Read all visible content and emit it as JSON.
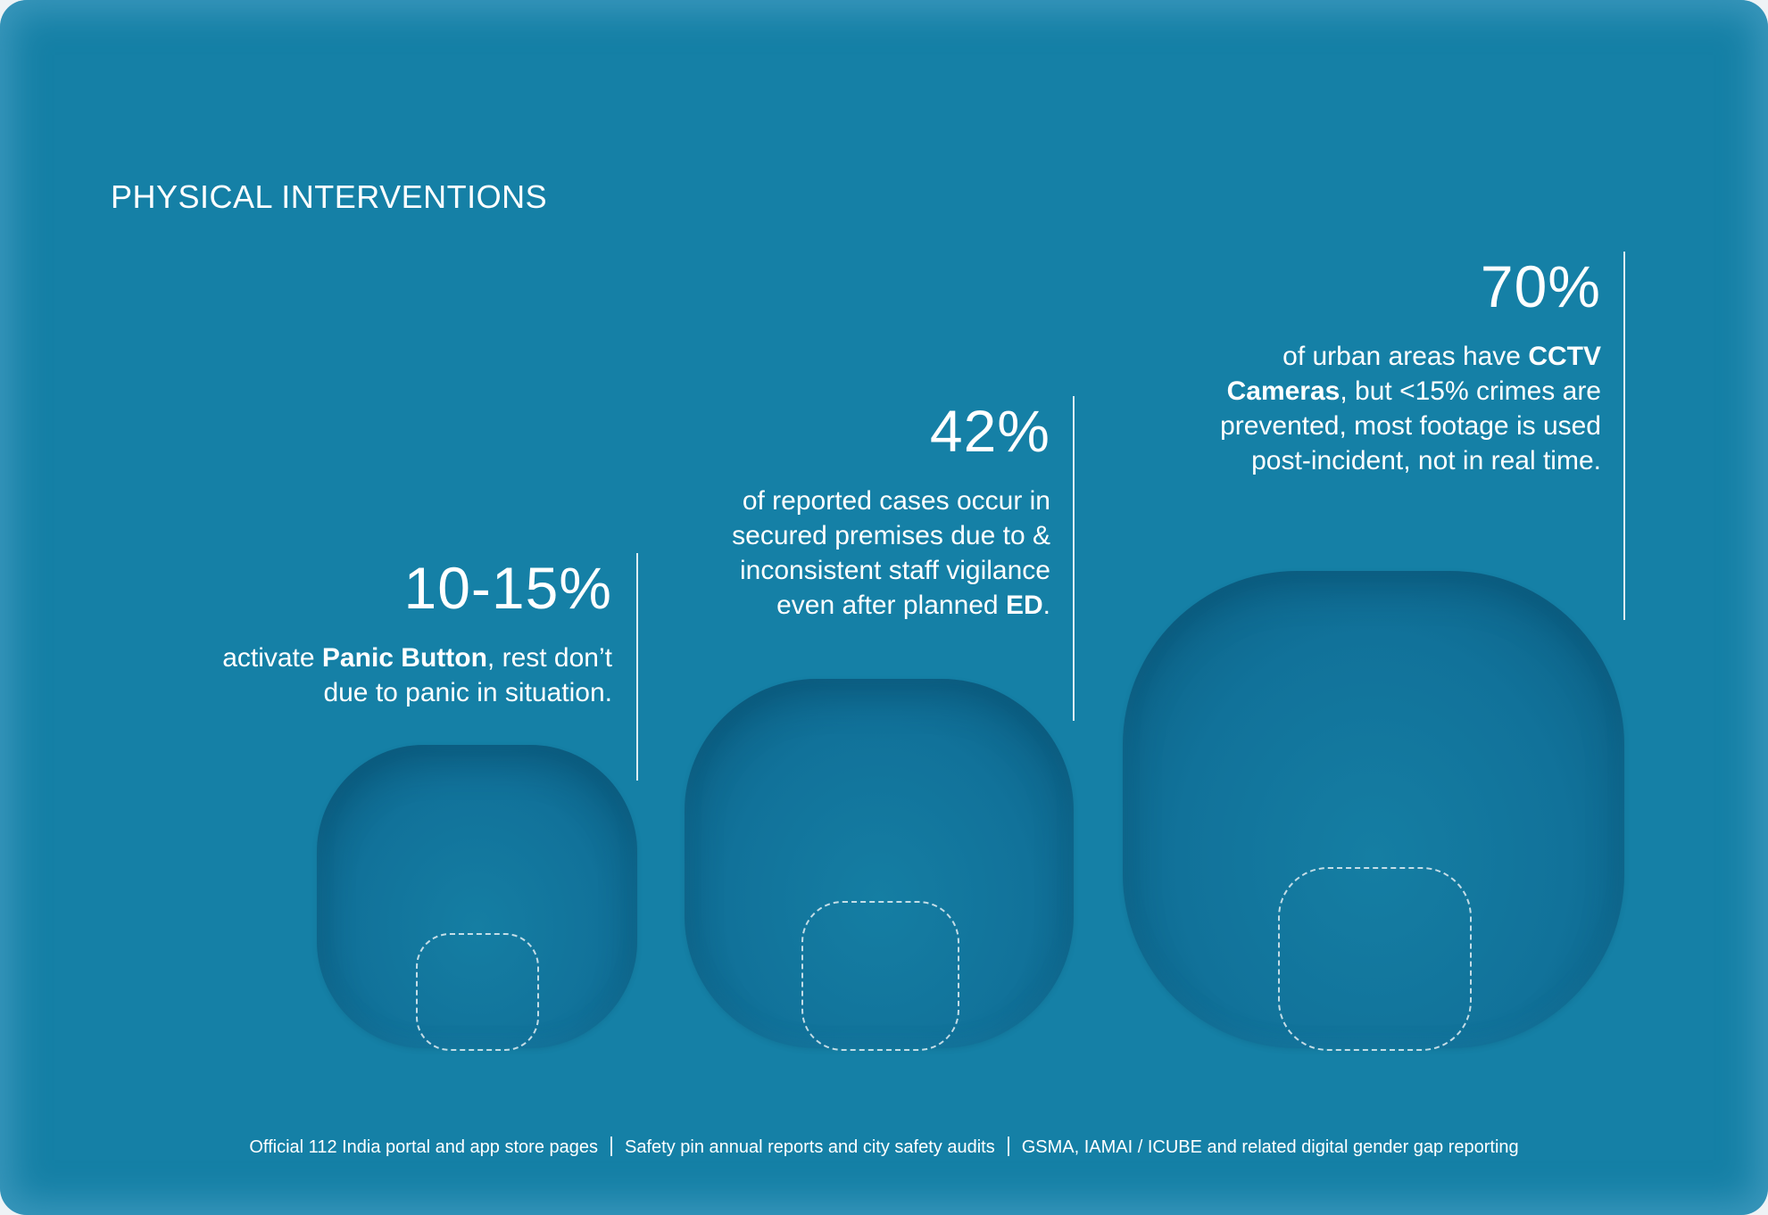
{
  "header": {
    "title": "PHYSICAL INTERVENTIONS"
  },
  "stats": [
    {
      "value": "10-15%",
      "desc_pre": "activate ",
      "desc_bold": "Panic Button",
      "desc_post": ", rest don’t due to panic in situation."
    },
    {
      "value": "42%",
      "desc_pre": "of reported cases occur in secured premises due to & inconsistent staff vigilance even after planned ",
      "desc_bold": "ED",
      "desc_post": "."
    },
    {
      "value": "70%",
      "desc_pre": "of urban areas have ",
      "desc_bold": "CCTV Cameras",
      "desc_post": ", but <15% crimes are prevented, most footage is used post-incident, not in real time."
    }
  ],
  "sources": [
    "Official 112 India portal and app store pages",
    "Safety pin annual reports and city safety audits",
    "GSMA, IAMAI / ICUBE and related digital gender gap reporting"
  ],
  "colors": {
    "background": "#1580a6",
    "blob": "#11729a",
    "text": "#ffffff"
  }
}
